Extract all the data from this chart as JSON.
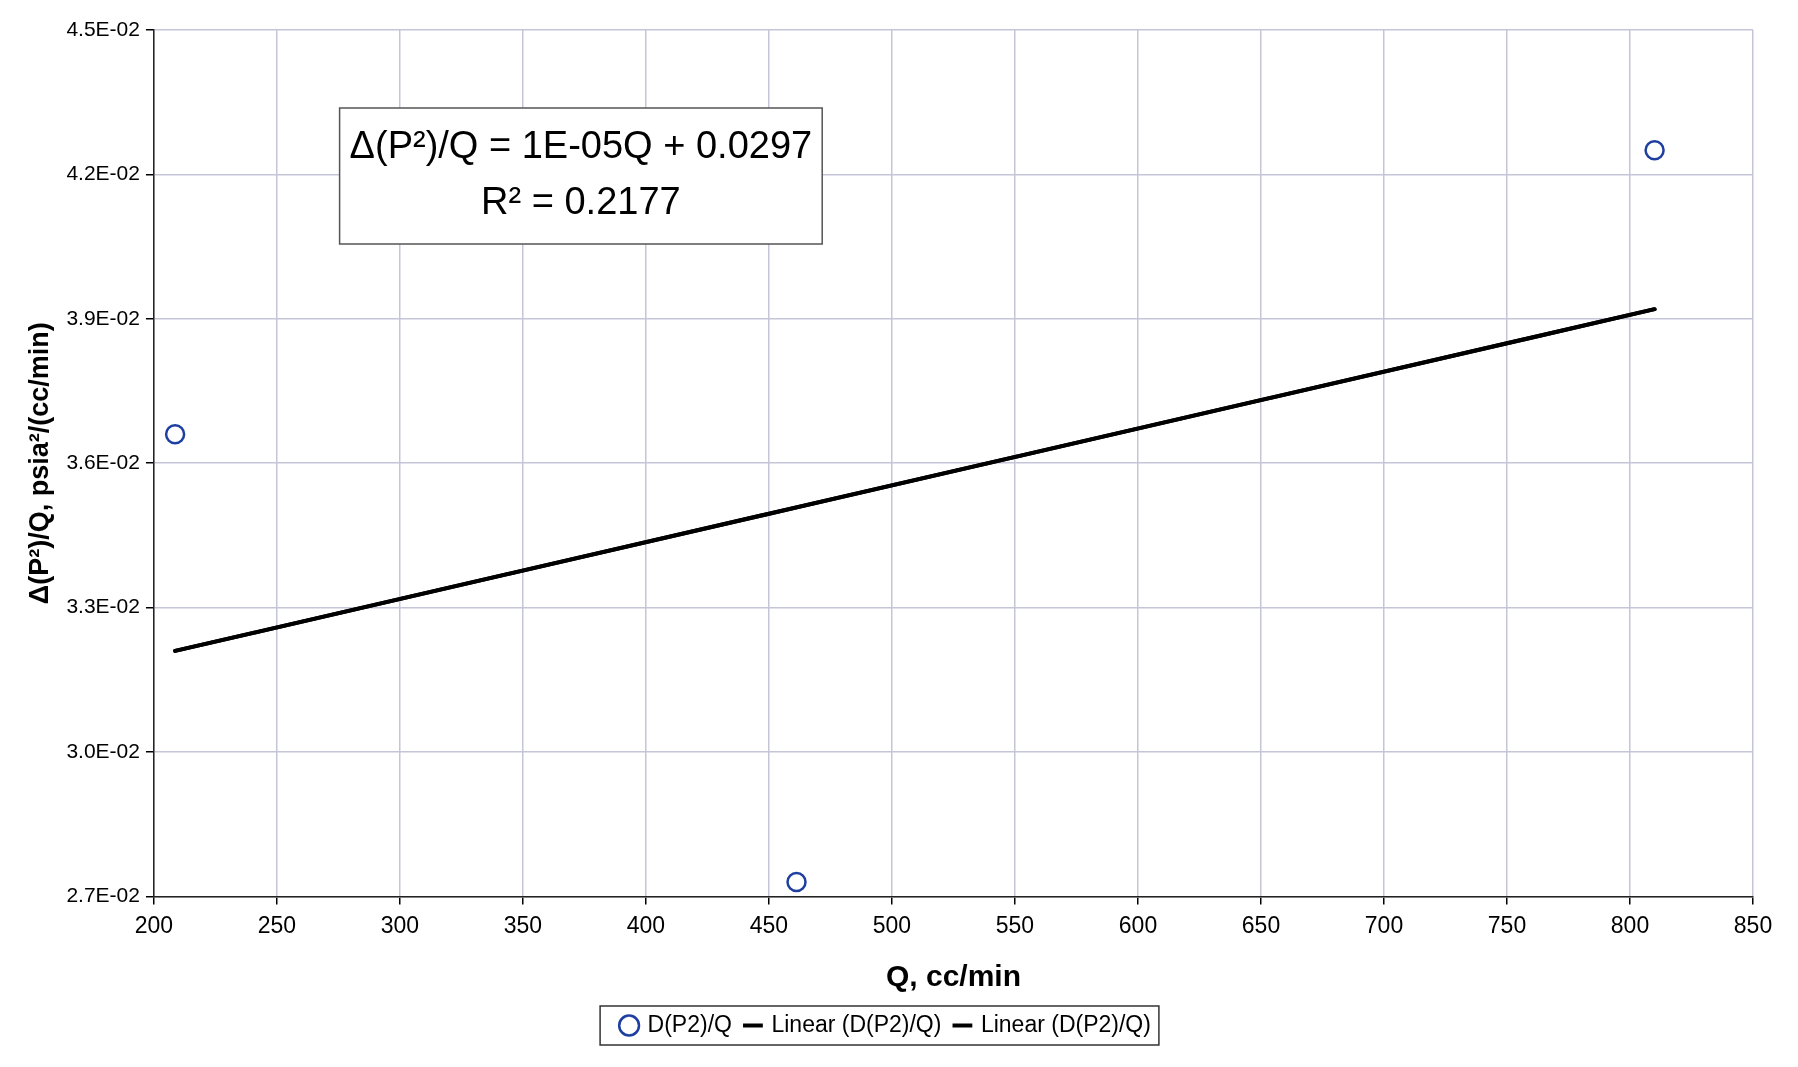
{
  "chart_data": {
    "type": "scatter",
    "xlabel": "Q, cc/min",
    "ylabel": "Δ(P²)/Q, psia²/(cc/min)",
    "series": [
      {
        "name": "D(P2)/Q",
        "marker": "circle",
        "color": "#1f3fa0",
        "x": [
          208.6,
          461.2,
          810.0
        ],
        "values": [
          0.0366,
          0.0273,
          0.0425
        ]
      },
      {
        "name": "Linear (D(P2)/Q)",
        "type": "line",
        "color": "#000000",
        "x": [
          208.6,
          810.0
        ],
        "values": [
          0.0321,
          0.0392
        ]
      },
      {
        "name": "Linear (D(P2)/Q)",
        "type": "line",
        "color": "#000000",
        "x": [
          208.6,
          810.0
        ],
        "values": [
          0.0321,
          0.0392
        ]
      }
    ],
    "annotations": [
      "Δ(P²)/Q = 1E-05Q + 0.0297",
      "R² = 0.2177"
    ],
    "xlim": [
      200,
      850
    ],
    "xticks": [
      200,
      250,
      300,
      350,
      400,
      450,
      500,
      550,
      600,
      650,
      700,
      750,
      800,
      850
    ],
    "ylim": [
      0.027,
      0.045
    ],
    "yticks": [
      {
        "value": 0.027,
        "label": "2.7E-02"
      },
      {
        "value": 0.03,
        "label": "3.0E-02"
      },
      {
        "value": 0.033,
        "label": "3.3E-02"
      },
      {
        "value": 0.036,
        "label": "3.6E-02"
      },
      {
        "value": 0.039,
        "label": "3.9E-02"
      },
      {
        "value": 0.042,
        "label": "4.2E-02"
      },
      {
        "value": 0.045,
        "label": "4.5E-02"
      }
    ],
    "grid": true,
    "legend": "bottom",
    "line_style": "solid"
  }
}
